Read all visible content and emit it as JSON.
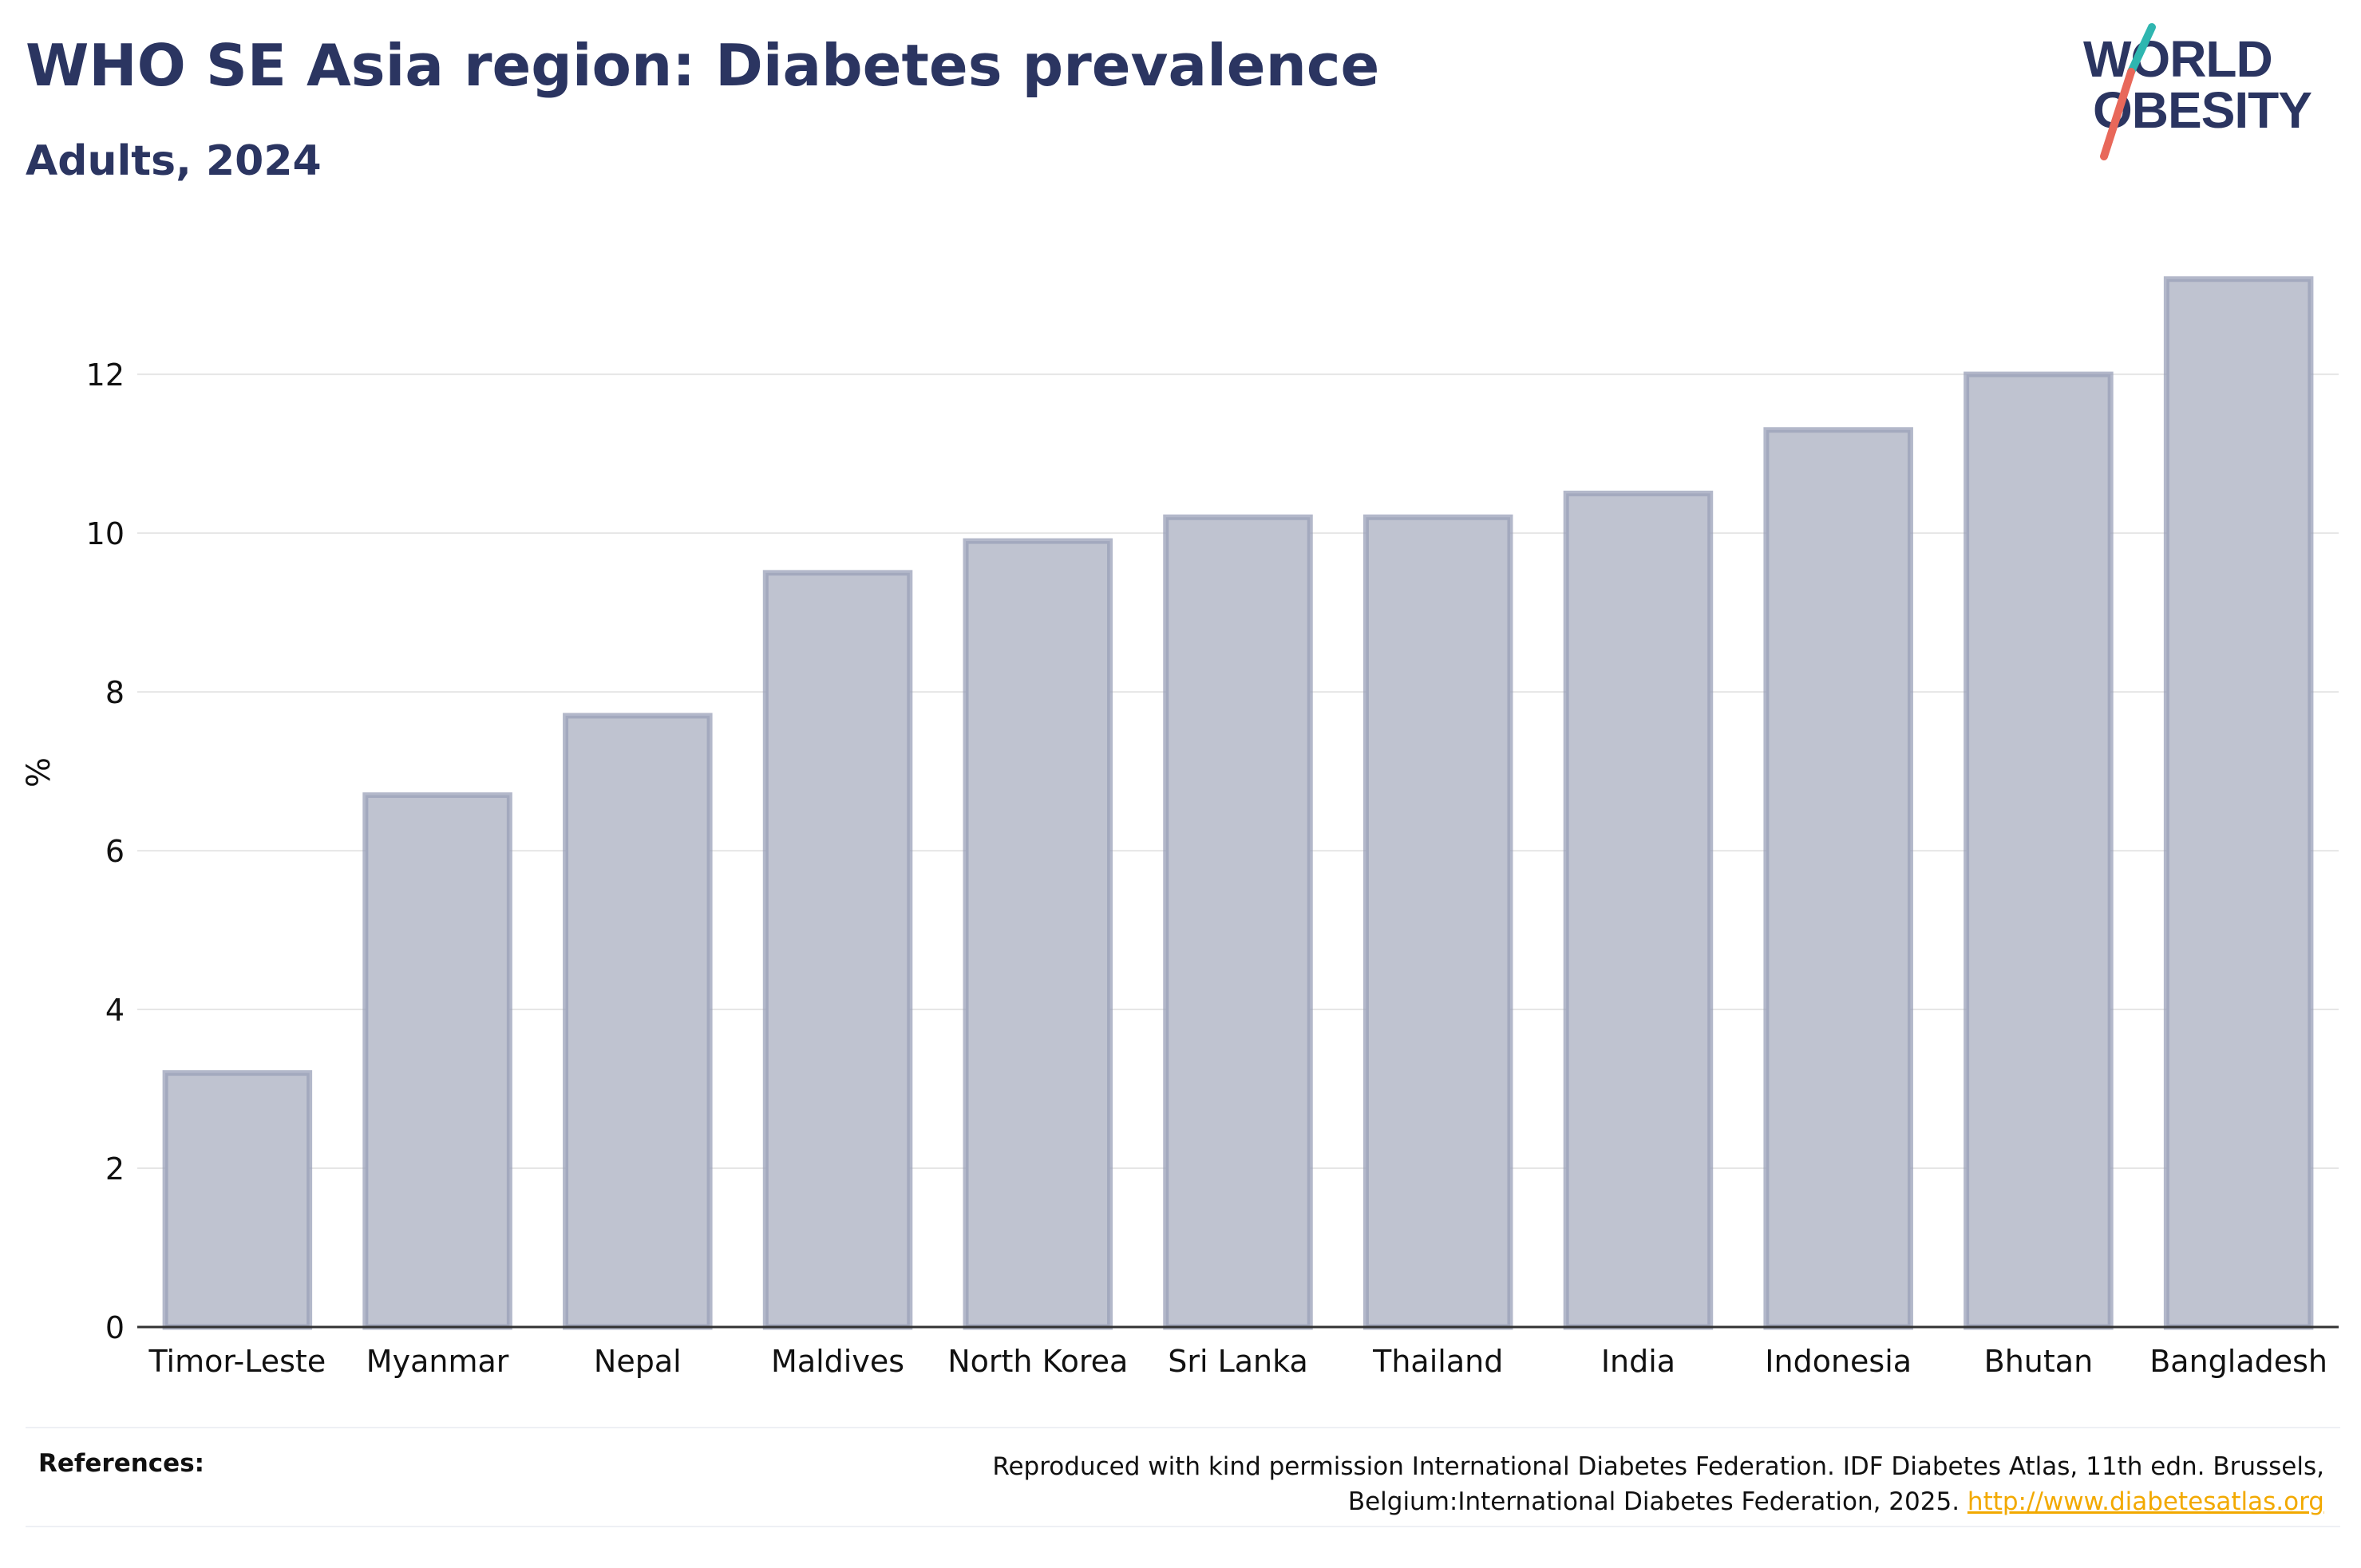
{
  "header": {
    "title": "WHO SE Asia region: Diabetes prevalence",
    "subtitle": "Adults, 2024"
  },
  "logo": {
    "line1": "WORLD",
    "line2": "OBESITY",
    "colors": {
      "text": "#2b3561",
      "slash_top": "#2fb6b0",
      "slash_bottom": "#e8685a"
    }
  },
  "chart_data": {
    "type": "bar",
    "title": "WHO SE Asia region: Diabetes prevalence",
    "subtitle": "Adults, 2024",
    "xlabel": "",
    "ylabel": "%",
    "ylim": [
      0,
      13.7
    ],
    "yticks": [
      0,
      2,
      4,
      6,
      8,
      10,
      12
    ],
    "grid": true,
    "legend": "none",
    "categories": [
      "Timor-Leste",
      "Myanmar",
      "Nepal",
      "Maldives",
      "North Korea",
      "Sri Lanka",
      "Thailand",
      "India",
      "Indonesia",
      "Bhutan",
      "Bangladesh"
    ],
    "values": [
      3.2,
      6.7,
      7.7,
      9.5,
      9.9,
      10.2,
      10.2,
      10.5,
      11.3,
      12.0,
      13.2
    ],
    "colors": {
      "bar_fill": "#bfc3d0",
      "bar_stroke": "#9aa0b8",
      "axis": "#333333",
      "grid": "#e6e6e6",
      "text": "#111111"
    }
  },
  "references": {
    "label": "References:",
    "text": "Reproduced with kind permission International Diabetes Federation. IDF Diabetes Atlas, 11th edn. Brussels, Belgium:International Diabetes Federation, 2025.",
    "link": "http://www.diabetesatlas.org"
  }
}
